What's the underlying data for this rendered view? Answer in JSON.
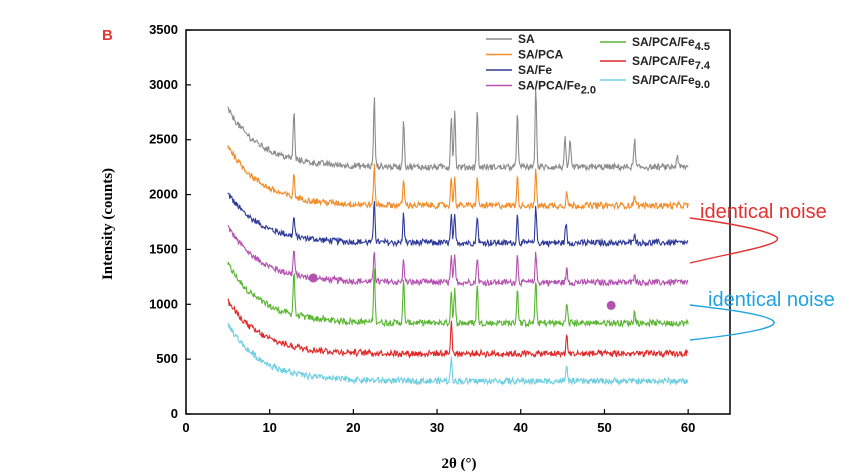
{
  "chart_data": {
    "type": "line",
    "panel_label": "B",
    "xlabel": "2θ (°)",
    "ylabel": "Intensity (counts)",
    "xlim": [
      0,
      65
    ],
    "ylim": [
      0,
      3500
    ],
    "x_ticks": [
      0,
      10,
      20,
      30,
      40,
      50,
      60
    ],
    "y_ticks": [
      0,
      500,
      1000,
      1500,
      2000,
      2500,
      3000,
      3500
    ],
    "x_range": [
      5,
      60
    ],
    "legend_position": "top-right",
    "series": [
      {
        "name": "SA",
        "color": "#8c8c8c",
        "base": 2250,
        "start": 2780,
        "decay": 4,
        "peaks": [
          {
            "x": 12.9,
            "h": 430
          },
          {
            "x": 22.5,
            "h": 620
          },
          {
            "x": 26.0,
            "h": 440
          },
          {
            "x": 31.7,
            "h": 480
          },
          {
            "x": 32.1,
            "h": 520
          },
          {
            "x": 34.8,
            "h": 530
          },
          {
            "x": 39.6,
            "h": 520
          },
          {
            "x": 41.8,
            "h": 710
          },
          {
            "x": 45.3,
            "h": 260
          },
          {
            "x": 45.9,
            "h": 230
          },
          {
            "x": 53.6,
            "h": 260
          },
          {
            "x": 58.7,
            "h": 120
          }
        ]
      },
      {
        "name": "SA/PCA",
        "color": "#f28c28",
        "base": 1900,
        "start": 2450,
        "decay": 4,
        "peaks": [
          {
            "x": 12.9,
            "h": 200
          },
          {
            "x": 22.5,
            "h": 360
          },
          {
            "x": 26.0,
            "h": 240
          },
          {
            "x": 31.7,
            "h": 250
          },
          {
            "x": 32.1,
            "h": 240
          },
          {
            "x": 34.8,
            "h": 260
          },
          {
            "x": 39.6,
            "h": 260
          },
          {
            "x": 41.8,
            "h": 320
          },
          {
            "x": 45.5,
            "h": 120
          },
          {
            "x": 53.6,
            "h": 110
          }
        ]
      },
      {
        "name": "SA/Fe",
        "color": "#2e3a99",
        "base": 1560,
        "start": 2010,
        "decay": 4,
        "peaks": [
          {
            "x": 12.9,
            "h": 180
          },
          {
            "x": 22.5,
            "h": 400
          },
          {
            "x": 26.0,
            "h": 270
          },
          {
            "x": 31.7,
            "h": 240
          },
          {
            "x": 32.1,
            "h": 240
          },
          {
            "x": 34.8,
            "h": 260
          },
          {
            "x": 39.6,
            "h": 250
          },
          {
            "x": 41.8,
            "h": 330
          },
          {
            "x": 45.4,
            "h": 180
          },
          {
            "x": 53.6,
            "h": 110
          }
        ]
      },
      {
        "name": "SA/PCA/Fe",
        "subscript": "2.0",
        "color": "#b352b0",
        "base": 1200,
        "start": 1710,
        "decay": 4,
        "peaks": [
          {
            "x": 12.9,
            "h": 230
          },
          {
            "x": 22.5,
            "h": 300
          },
          {
            "x": 26.0,
            "h": 210
          },
          {
            "x": 31.7,
            "h": 230
          },
          {
            "x": 32.1,
            "h": 230
          },
          {
            "x": 34.8,
            "h": 240
          },
          {
            "x": 39.6,
            "h": 240
          },
          {
            "x": 41.8,
            "h": 270
          },
          {
            "x": 45.5,
            "h": 120
          },
          {
            "x": 53.6,
            "h": 100
          }
        ],
        "markers": [
          {
            "x": 15.2,
            "y": 1240
          },
          {
            "x": 50.8,
            "y": 990
          }
        ]
      },
      {
        "name": "SA/PCA/Fe",
        "subscript": "4.5",
        "color": "#5ab533",
        "base": 830,
        "start": 1370,
        "decay": 4,
        "peaks": [
          {
            "x": 12.9,
            "h": 400
          },
          {
            "x": 22.5,
            "h": 480
          },
          {
            "x": 26.0,
            "h": 380
          },
          {
            "x": 31.7,
            "h": 300
          },
          {
            "x": 32.1,
            "h": 300
          },
          {
            "x": 34.8,
            "h": 340
          },
          {
            "x": 39.6,
            "h": 320
          },
          {
            "x": 41.8,
            "h": 380
          },
          {
            "x": 45.5,
            "h": 180
          },
          {
            "x": 53.6,
            "h": 100
          }
        ]
      },
      {
        "name": "SA/PCA/Fe",
        "subscript": "7.4",
        "color": "#e02828",
        "base": 550,
        "start": 1030,
        "decay": 4,
        "peaks": [
          {
            "x": 31.7,
            "h": 300
          },
          {
            "x": 45.5,
            "h": 160
          }
        ]
      },
      {
        "name": "SA/PCA/Fe",
        "subscript": "9.0",
        "color": "#6fcfe0",
        "base": 300,
        "start": 820,
        "decay": 4,
        "peaks": [
          {
            "x": 31.7,
            "h": 230
          },
          {
            "x": 45.5,
            "h": 140
          }
        ]
      }
    ],
    "annotations": [
      {
        "text": "identical noise",
        "color": "#e53030",
        "from_series": [
          2,
          3
        ]
      },
      {
        "text": "identical noise",
        "color": "#1fa3e0",
        "from_series": [
          3,
          4
        ]
      }
    ]
  }
}
